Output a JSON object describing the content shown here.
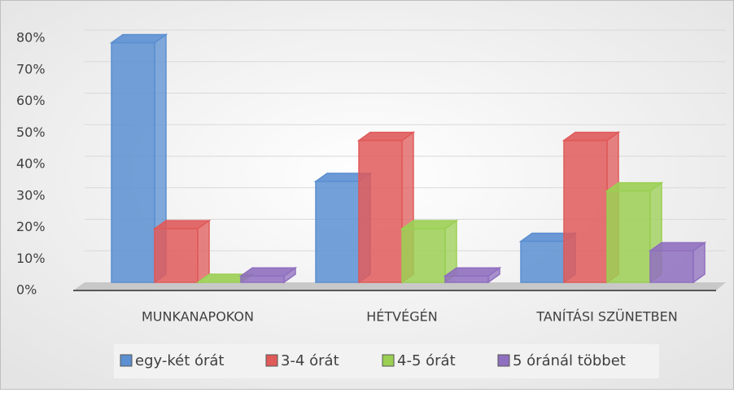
{
  "chart_data": {
    "type": "bar3d",
    "categories": [
      "MUNKANAPOKON",
      "HÉTVÉGÉN",
      "TANÍTÁSI SZÜNETBEN"
    ],
    "series": [
      {
        "name": "egy-két órát",
        "color": "#5b8fd1",
        "values": [
          76,
          32,
          13
        ]
      },
      {
        "name": "3-4 órát",
        "color": "#e05a5a",
        "values": [
          17,
          45,
          45
        ]
      },
      {
        "name": "4-5 órát",
        "color": "#9bcf53",
        "values": [
          0,
          17,
          29
        ]
      },
      {
        "name": "5 óránál többet",
        "color": "#8f6fbf",
        "values": [
          2,
          2,
          10
        ]
      }
    ],
    "ylim": [
      0,
      80
    ],
    "yticks": [
      {
        "value": 0,
        "label": "0%"
      },
      {
        "value": 10,
        "label": "10%"
      },
      {
        "value": 20,
        "label": "20%"
      },
      {
        "value": 30,
        "label": "30%"
      },
      {
        "value": 40,
        "label": "40%"
      },
      {
        "value": 50,
        "label": "50%"
      },
      {
        "value": 60,
        "label": "60%"
      },
      {
        "value": 70,
        "label": "70%"
      },
      {
        "value": 80,
        "label": "80%"
      }
    ],
    "grid": true,
    "legend": "bottom"
  }
}
